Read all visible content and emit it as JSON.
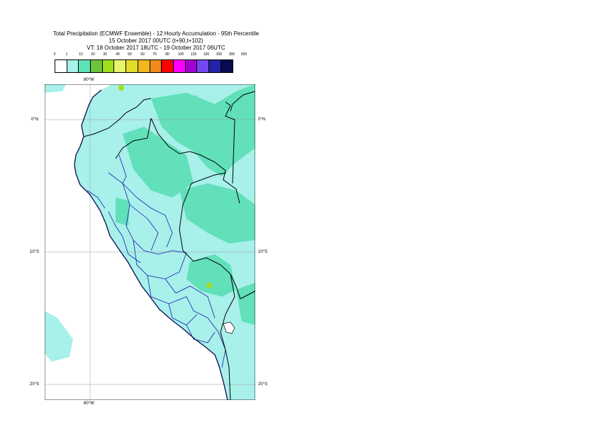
{
  "title": {
    "line1": "Total Precipitation (ECMWF Ensemble) - 12 Hourly Accumulation - 95th Percentile",
    "line2": "15 October 2017 00UTC (t+90,t+102)",
    "line3": "VT: 18 October 2017 18UTC - 19 October 2017 06UTC"
  },
  "legend": {
    "labels": [
      "0",
      "1",
      "10",
      "20",
      "30",
      "40",
      "50",
      "60",
      "70",
      "80",
      "100",
      "125",
      "150",
      "200",
      "300",
      "500"
    ],
    "colors": [
      "#ffffff",
      "#a8f0ea",
      "#5ee0b8",
      "#6cc43c",
      "#9ede1a",
      "#e6f46c",
      "#e0dc28",
      "#f0b81c",
      "#f08a1c",
      "#ff0000",
      "#ff00ff",
      "#a000d0",
      "#7448f0",
      "#2424a8",
      "#0a0a50"
    ]
  },
  "axes": {
    "top_lon": "80°W",
    "bottom_lon": "80°W",
    "lat_labels": [
      "0°N",
      "10°S",
      "20°S"
    ]
  },
  "colors": {
    "ocean": "#ffffff",
    "light_precip": "#a8f0ea",
    "moderate_precip": "#5ee0b8",
    "heavy_precip": "#9ede1a",
    "country_border": "#000000",
    "region_border": "#1a1ab4",
    "grid": "#999999"
  }
}
